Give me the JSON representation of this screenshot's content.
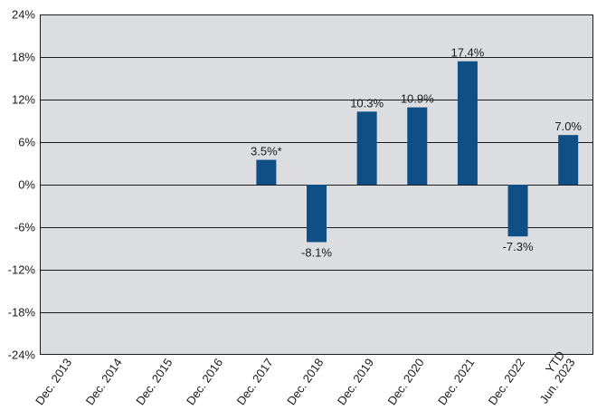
{
  "chart_data": {
    "type": "bar",
    "title": "",
    "xlabel": "",
    "ylabel": "",
    "categories": [
      "Dec. 2013",
      "Dec. 2014",
      "Dec. 2015",
      "Dec. 2016",
      "Dec. 2017",
      "Dec. 2018",
      "Dec. 2019",
      "Dec. 2020",
      "Dec. 2021",
      "Dec. 2022",
      "YTD\nJun. 2023"
    ],
    "values": [
      null,
      null,
      null,
      null,
      3.5,
      -8.1,
      10.3,
      10.9,
      17.4,
      -7.3,
      7.0
    ],
    "value_labels": [
      "",
      "",
      "",
      "",
      "3.5%*",
      "-8.1%",
      "10.3%",
      "10.9%",
      "17.4%",
      "-7.3%",
      "7.0%"
    ],
    "ylim": [
      -24,
      24
    ],
    "yticks": [
      24,
      18,
      12,
      6,
      0,
      -6,
      -12,
      -18,
      -24
    ],
    "ytick_labels": [
      "24%",
      "18%",
      "12%",
      "6%",
      "0%",
      "-6%",
      "-12%",
      "-18%",
      "-24%"
    ],
    "grid": true,
    "legend": "none",
    "colors": {
      "bar": "#0f4f85",
      "plot_background": "#dcdde0",
      "gridline": "#1a1a1a",
      "text": "#1a1a1a"
    }
  }
}
